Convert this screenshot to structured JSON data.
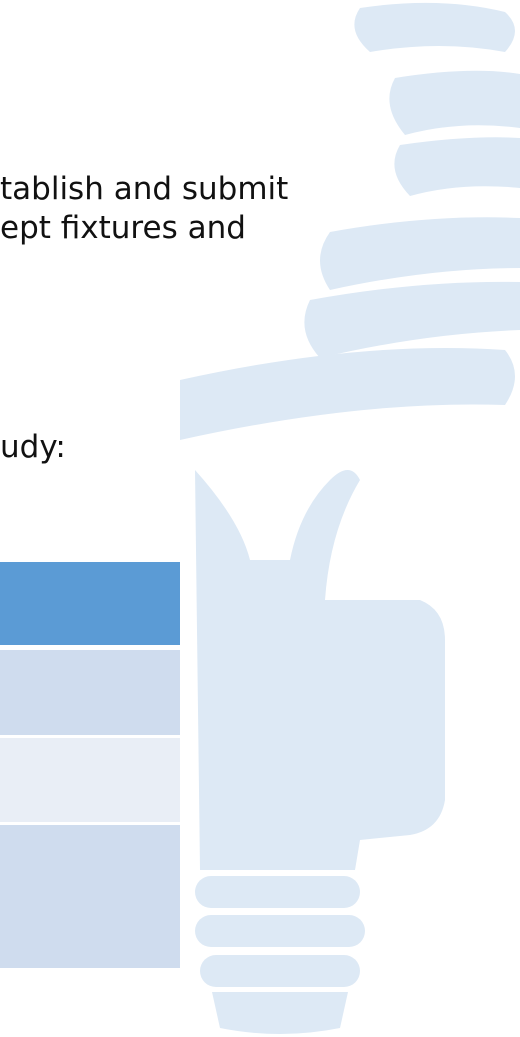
{
  "body": {
    "paragraph_lines": [
      "tablish and submit",
      "ept fixtures and"
    ],
    "lead_in": "udy:"
  }
}
